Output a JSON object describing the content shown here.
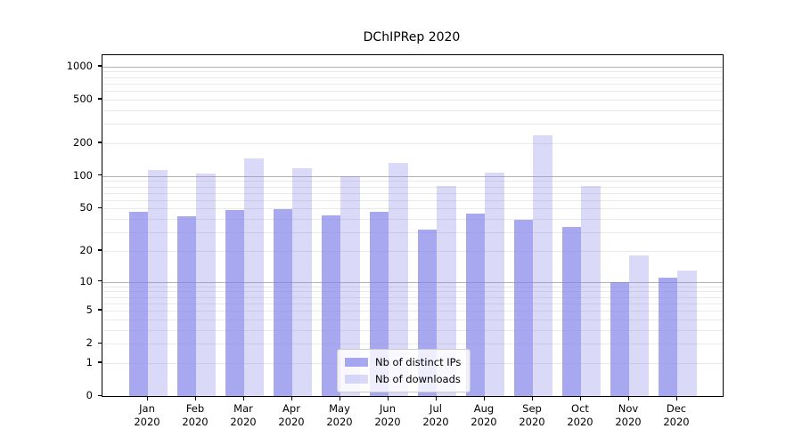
{
  "chart_data": {
    "type": "bar",
    "title": "DChIPRep 2020",
    "months": [
      "Jan",
      "Feb",
      "Mar",
      "Apr",
      "May",
      "Jun",
      "Jul",
      "Aug",
      "Sep",
      "Oct",
      "Nov",
      "Dec"
    ],
    "year": "2020",
    "series": [
      {
        "name": "Nb of distinct IPs",
        "fill": "rgba(131,131,233,0.7)",
        "values": [
          47,
          42,
          48,
          49,
          43,
          47,
          32,
          45,
          39,
          34,
          10,
          11
        ]
      },
      {
        "name": "Nb of downloads",
        "fill": "rgba(131,131,233,0.3)",
        "values": [
          113,
          105,
          145,
          118,
          100,
          133,
          81,
          108,
          235,
          81,
          18,
          13
        ]
      }
    ],
    "yscale": "log(1+x)",
    "ylim": [
      0,
      1270
    ],
    "yticks": [
      0,
      1,
      2,
      5,
      10,
      20,
      50,
      100,
      200,
      500,
      1000
    ],
    "major_gridlines": [
      10,
      100,
      1000
    ],
    "minor_gridlines": [
      1,
      2,
      3,
      4,
      5,
      6,
      7,
      8,
      9,
      20,
      30,
      40,
      50,
      60,
      70,
      80,
      90,
      200,
      300,
      400,
      500,
      600,
      700,
      800,
      900
    ],
    "legend_position": "lower center",
    "grid": true,
    "colors": {
      "bar_base": "#8383e9",
      "bar_ips_rendered": "#a8a8f0",
      "bar_downloads_rendered": "#d8d8f8",
      "major_grid": "#b3b3b3",
      "minor_grid": "#e9e9e9",
      "axis": "#000000"
    }
  }
}
